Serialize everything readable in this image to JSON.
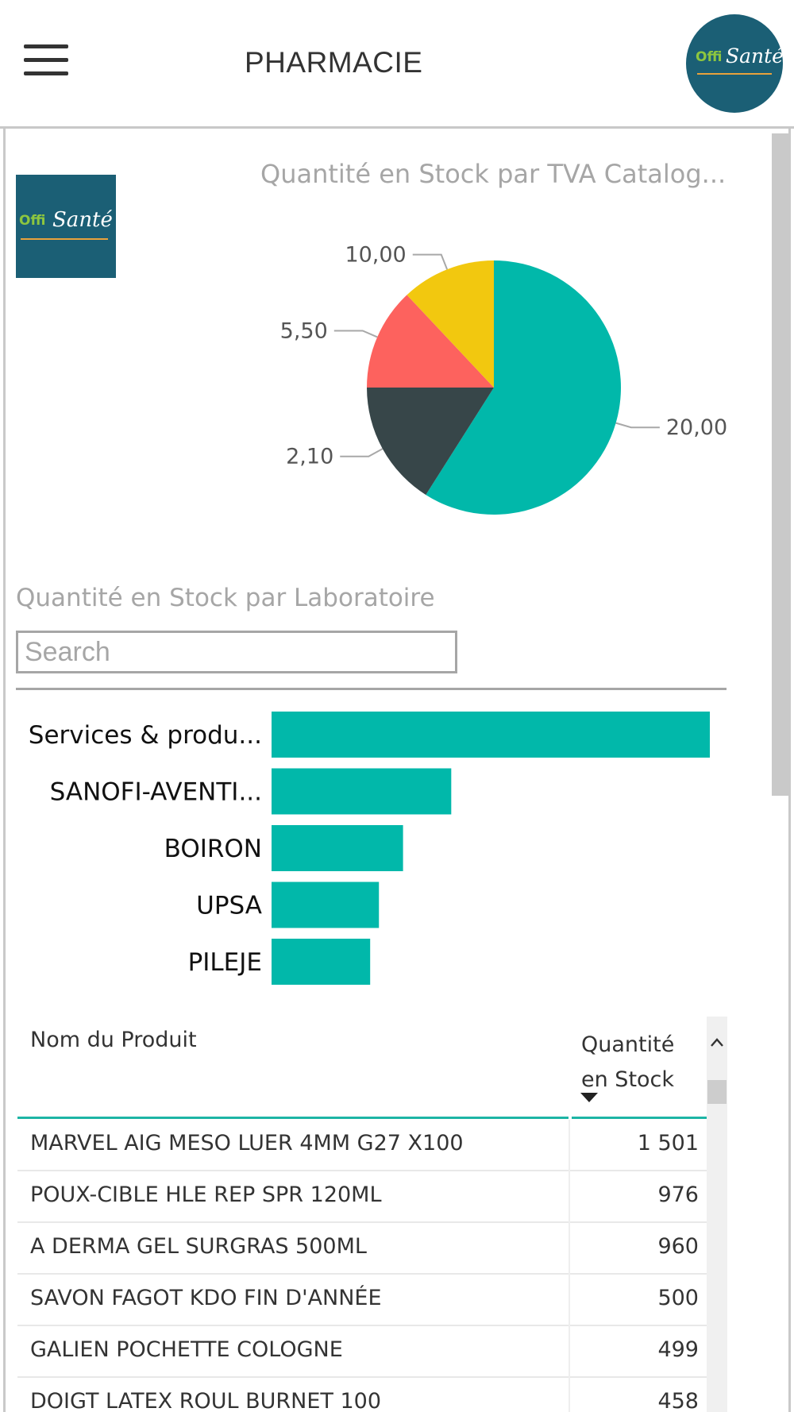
{
  "header": {
    "title": "PHARMACIE",
    "logo": {
      "offi": "Offi",
      "sante": "Santé"
    }
  },
  "brand_colors": {
    "teal": "#01b8aa",
    "dark": "#374649",
    "red": "#fd625e",
    "yellow": "#f2c80f",
    "navy": "#1b5f75"
  },
  "pie_chart": {
    "title": "Quantité en Stock par TVA Catalog..."
  },
  "labo_chart": {
    "title": "Quantité en Stock par Laboratoire",
    "search_placeholder": "Search"
  },
  "chart_data": [
    {
      "type": "pie",
      "title": "Quantité en Stock par TVA Catalog...",
      "categories": [
        "20,00",
        "2,10",
        "5,50",
        "10,00"
      ],
      "values": [
        59,
        16,
        13,
        12
      ],
      "colors": [
        "#01b8aa",
        "#374649",
        "#fd625e",
        "#f2c80f"
      ]
    },
    {
      "type": "bar",
      "orientation": "horizontal",
      "title": "Quantité en Stock par Laboratoire",
      "categories": [
        "Services & produ...",
        "SANOFI-AVENTI...",
        "BOIRON",
        "UPSA",
        "PILEJE"
      ],
      "values": [
        100,
        41,
        30,
        24.5,
        22.5
      ],
      "color": "#01b8aa"
    }
  ],
  "table": {
    "columns": {
      "name": "Nom du Produit",
      "qty_line1": "Quantité",
      "qty_line2": "en Stock"
    },
    "rows": [
      {
        "name": "MARVEL AIG MESO LUER 4MM G27 X100",
        "qty": "1 501"
      },
      {
        "name": "POUX-CIBLE HLE REP SPR 120ML",
        "qty": "976"
      },
      {
        "name": "A DERMA GEL SURGRAS 500ML",
        "qty": "960"
      },
      {
        "name": "SAVON FAGOT KDO FIN D'ANNÉE",
        "qty": "500"
      },
      {
        "name": "GALIEN POCHETTE COLOGNE",
        "qty": "499"
      },
      {
        "name": "DOIGT LATEX ROUL BURNET 100",
        "qty": "458"
      }
    ]
  },
  "icons": {
    "menu": "hamburger-menu-icon",
    "sort": "sort-descending-icon",
    "scroll_up": "chevron-up-icon"
  }
}
